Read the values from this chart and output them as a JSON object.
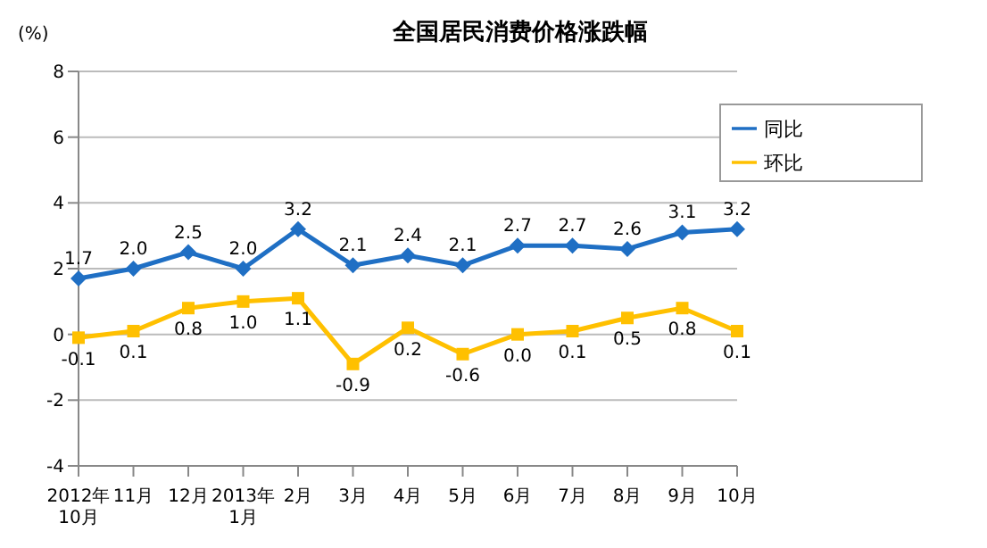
{
  "chart_data": {
    "type": "line",
    "title": "全国居民消费价格涨跌幅",
    "ylabel": "(%)",
    "categories": [
      "2012年\n10月",
      "11月",
      "12月",
      "2013年\n1月",
      "2月",
      "3月",
      "4月",
      "5月",
      "6月",
      "7月",
      "8月",
      "9月",
      "10月"
    ],
    "series": [
      {
        "name": "同比",
        "color": "#1f6fc4",
        "marker": "diamond",
        "values": [
          1.7,
          2.0,
          2.5,
          2.0,
          3.2,
          2.1,
          2.4,
          2.1,
          2.7,
          2.7,
          2.6,
          3.1,
          3.2
        ],
        "value_labels": [
          "1.7",
          "2.0",
          "2.5",
          "2.0",
          "3.2",
          "2.1",
          "2.4",
          "2.1",
          "2.7",
          "2.7",
          "2.6",
          "3.1",
          "3.2"
        ]
      },
      {
        "name": "环比",
        "color": "#ffc000",
        "marker": "square",
        "values": [
          -0.1,
          0.1,
          0.8,
          1.0,
          1.1,
          -0.9,
          0.2,
          -0.6,
          0.0,
          0.1,
          0.5,
          0.8,
          0.1
        ],
        "value_labels": [
          "-0.1",
          "0.1",
          "0.8",
          "1.0",
          "1.1",
          "-0.9",
          "0.2",
          "-0.6",
          "0.0",
          "0.1",
          "0.5",
          "0.8",
          "0.1"
        ]
      }
    ],
    "ylim": [
      -4,
      8
    ],
    "yticks": [
      -4,
      -2,
      0,
      2,
      4,
      6,
      8
    ],
    "grid": "y",
    "legend": "top right"
  }
}
